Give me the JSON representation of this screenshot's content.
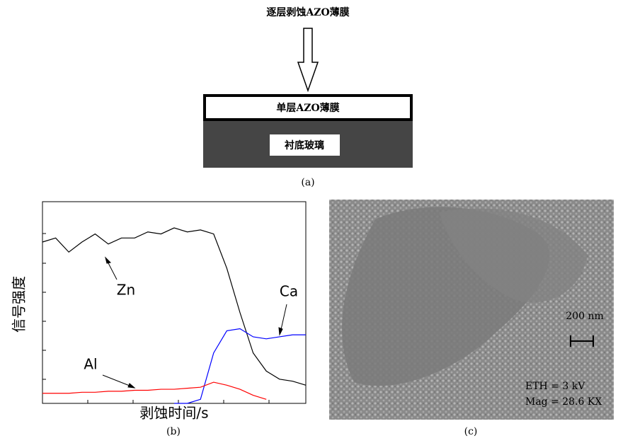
{
  "diagram": {
    "process_label": "逐层剥蚀AZO薄膜",
    "film_label": "单层AZO薄膜",
    "substrate_label": "衬底玻璃",
    "panel_label": "(a)"
  },
  "chart_data": {
    "type": "line",
    "xlabel": "剥蚀时间/s",
    "ylabel": "信号强度",
    "panel_label": "(b)",
    "x": [
      0,
      5,
      10,
      15,
      20,
      25,
      30,
      35,
      40,
      45,
      50,
      55,
      60,
      65,
      70,
      75,
      80,
      85,
      90,
      95,
      100
    ],
    "xlim": [
      0,
      100
    ],
    "ylim": [
      0,
      100
    ],
    "series": [
      {
        "name": "Zn",
        "color": "#000000",
        "values": [
          80,
          82,
          75,
          80,
          84,
          79,
          82,
          82,
          85,
          84,
          87,
          85,
          86,
          84,
          67,
          45,
          25,
          16,
          12,
          11,
          9
        ]
      },
      {
        "name": "Ca",
        "color": "#0000ff",
        "values": [
          null,
          null,
          null,
          null,
          null,
          null,
          null,
          null,
          null,
          null,
          0,
          0,
          2,
          25,
          36,
          37,
          33,
          32,
          33,
          34,
          34
        ]
      },
      {
        "name": "Al",
        "color": "#ff0000",
        "values": [
          5,
          5,
          5,
          5.5,
          5.5,
          6,
          6,
          6.5,
          6.5,
          7,
          7,
          7.5,
          8,
          10.5,
          9,
          7,
          4,
          2,
          null,
          null,
          null
        ]
      }
    ],
    "annotations": [
      "Zn",
      "Ca",
      "Al"
    ]
  },
  "image": {
    "scale_label": "200 nm",
    "voltage_label": "ETH = 3 kV",
    "magnification_label": "Mag = 28.6 KX",
    "panel_label": "(c)"
  }
}
